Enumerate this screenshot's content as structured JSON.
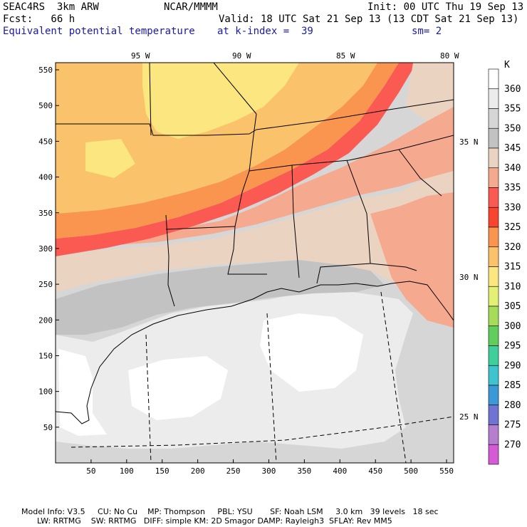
{
  "header": {
    "model_title": "SEAC4RS  3km ARW",
    "org": "NCAR/MMMM",
    "init": "Init: 00 UTC Thu 19 Sep 13",
    "fcst": "Fcst:   66 h",
    "valid": "Valid: 18 UTC Sat 21 Sep 13 (13 CDT Sat 21 Sep 13)",
    "field": "Equivalent potential temperature",
    "level": "at k-index =  39",
    "smooth": "sm= 2"
  },
  "map": {
    "lon_labels": [
      "95 W",
      "90 W",
      "85 W",
      "80 W"
    ],
    "lat_labels": [
      "35 N",
      "30 N",
      "25 N"
    ],
    "x_ticks": [
      "50",
      "100",
      "150",
      "200",
      "250",
      "300",
      "350",
      "400",
      "450",
      "500",
      "550"
    ],
    "y_ticks": [
      "50",
      "100",
      "150",
      "200",
      "250",
      "300",
      "350",
      "400",
      "450",
      "500",
      "550"
    ]
  },
  "colorbar": {
    "unit": "K",
    "levels": [
      "360",
      "355",
      "350",
      "345",
      "340",
      "335",
      "330",
      "325",
      "320",
      "315",
      "310",
      "305",
      "300",
      "295",
      "290",
      "285",
      "280",
      "275",
      "270"
    ],
    "colors": [
      "#ffffff",
      "#ececec",
      "#d6d6d6",
      "#c2c2c2",
      "#ebd3c1",
      "#f5a98e",
      "#fb5a52",
      "#f7452f",
      "#f9954e",
      "#f9c26b",
      "#fbe680",
      "#e3f073",
      "#a6dc5a",
      "#60cd5c",
      "#3fcf9a",
      "#3fc4cf",
      "#3b9ad6",
      "#6f73d2",
      "#b57fce",
      "#d45bd4"
    ]
  },
  "footer": {
    "line1": "Model Info: V3.5     CU: No Cu    MP: Thompson     PBL: YSU       SF: Noah LSM     3.0 km   39 levels   18 sec",
    "line2": "LW: RRTMG    SW: RRTMG   DIFF: simple KM: 2D Smagor DAMP: Rayleigh3  SFLAY: Rev MM5"
  }
}
